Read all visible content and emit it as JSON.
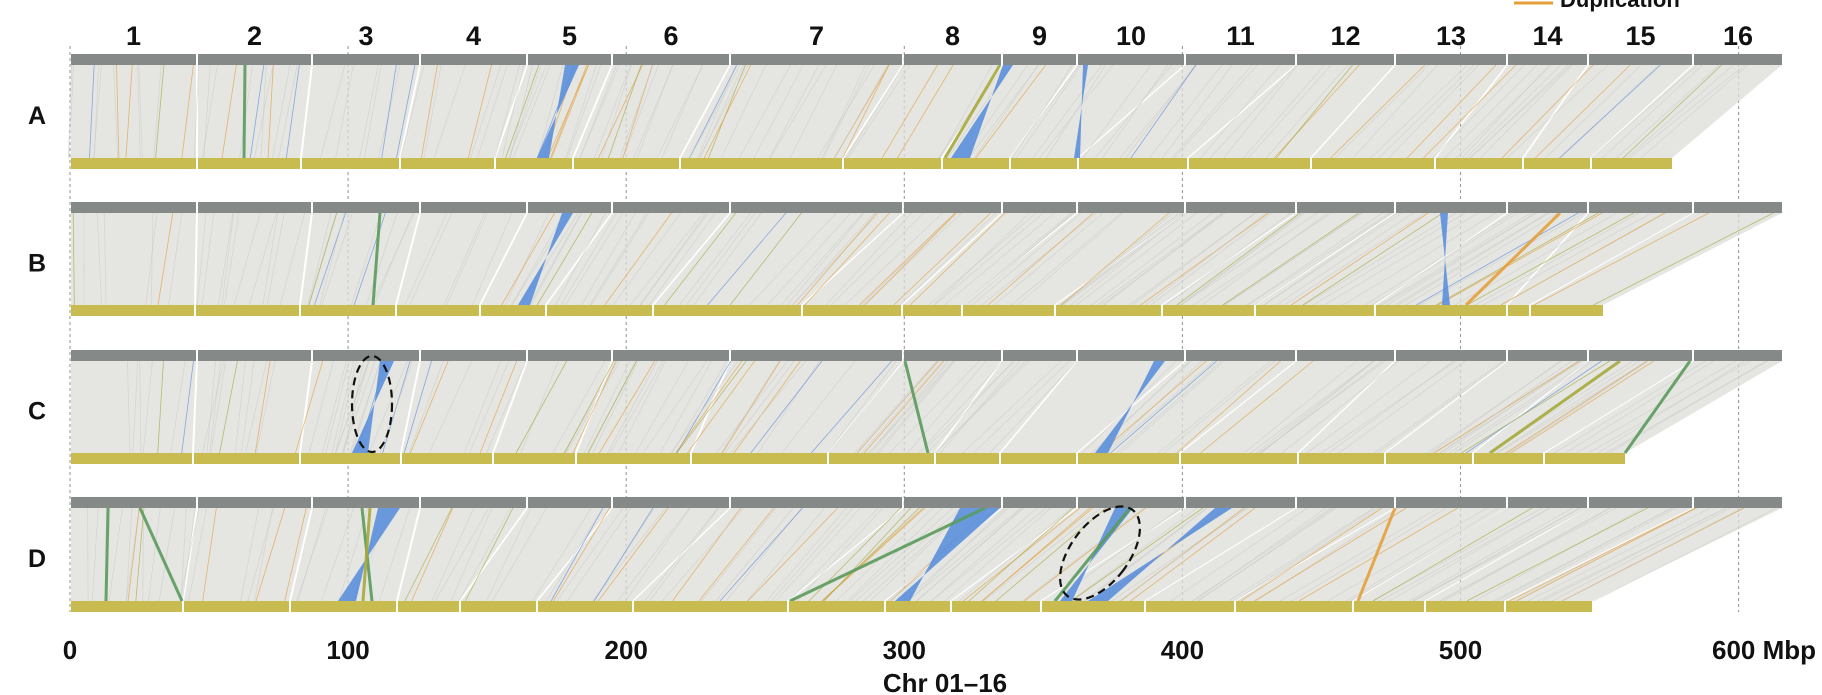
{
  "chromosome_labels": [
    "1",
    "2",
    "3",
    "4",
    "5",
    "6",
    "7",
    "8",
    "9",
    "10",
    "11",
    "12",
    "13",
    "14",
    "15",
    "16"
  ],
  "row_labels": [
    "A",
    "B",
    "C",
    "D"
  ],
  "x_axis": {
    "ticks": [
      "0",
      "100",
      "200",
      "300",
      "400",
      "500"
    ],
    "end_label": "600 Mbp",
    "title": "Chr 01–16"
  },
  "legend": {
    "duplication": "Duplication"
  },
  "colors": {
    "reference_bar": "#858a88",
    "query_bar": "#c8bb4f",
    "synteny": "#dcdcd8",
    "inversion": "#5b8fdb",
    "translocation": "#5a9a5c",
    "duplication": "#e3a03a",
    "olive_link": "#a6a83a"
  }
}
